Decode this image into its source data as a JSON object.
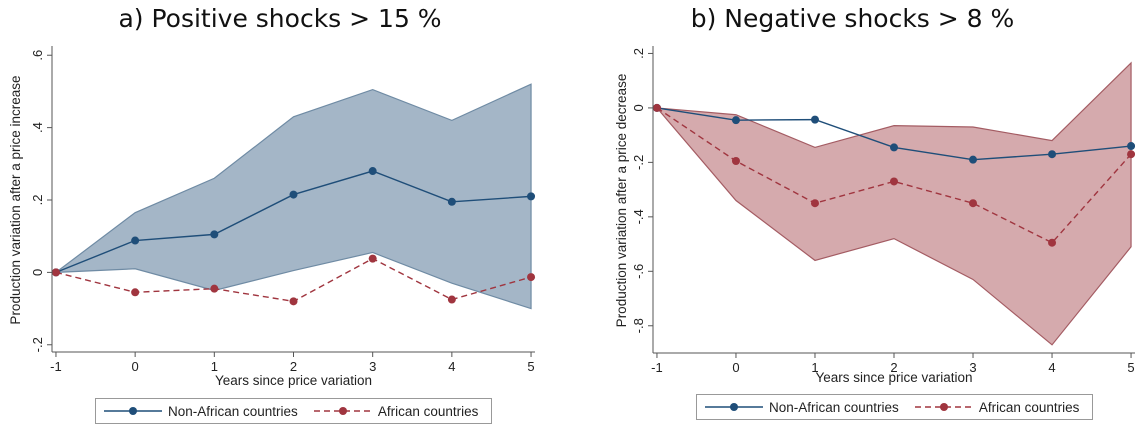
{
  "chart_data": [
    {
      "type": "line",
      "title": "a) Positive shocks > 15 %",
      "xlabel": "Years since price variation",
      "ylabel": "Production variation after a price increase",
      "x": [
        -1,
        0,
        1,
        2,
        3,
        4,
        5
      ],
      "x_tick_labels": [
        "-1",
        "0",
        "1",
        "2",
        "3",
        "4",
        "5"
      ],
      "y_ticks": [
        -0.2,
        0,
        0.2,
        0.4,
        0.6
      ],
      "y_tick_labels": [
        "-.2",
        "0",
        ".2",
        ".4",
        ".6"
      ],
      "ylim": [
        -0.22,
        0.62
      ],
      "xlim": [
        -1.05,
        5.05
      ],
      "band": {
        "upper": [
          0,
          0.165,
          0.26,
          0.43,
          0.505,
          0.42,
          0.52
        ],
        "lower": [
          0,
          0.01,
          -0.05,
          0.005,
          0.055,
          -0.03,
          -0.1
        ],
        "fill": "#9fb2c4",
        "stroke": "#6f8ba4"
      },
      "series": [
        {
          "name": "Non-African countries",
          "values": [
            0,
            0.088,
            0.105,
            0.215,
            0.28,
            0.195,
            0.21
          ],
          "color": "#1f4e79",
          "dash": "solid"
        },
        {
          "name": "African countries",
          "values": [
            0,
            -0.055,
            -0.045,
            -0.08,
            0.038,
            -0.075,
            -0.013
          ],
          "color": "#a0353f",
          "dash": "dashed"
        }
      ],
      "legend_position": "bottom",
      "grid": false
    },
    {
      "type": "line",
      "title": "b) Negative shocks > 8 %",
      "xlabel": "Years since price variation",
      "ylabel": "Production variation after a price decrease",
      "x": [
        -1,
        0,
        1,
        2,
        3,
        4,
        5
      ],
      "x_tick_labels": [
        "-1",
        "0",
        "1",
        "2",
        "3",
        "4",
        "5"
      ],
      "y_ticks": [
        -0.8,
        -0.6,
        -0.4,
        -0.2,
        0,
        0.2
      ],
      "y_tick_labels": [
        "-.8",
        "-.6",
        "-.4",
        "-.2",
        "0",
        ".2"
      ],
      "ylim": [
        -0.9,
        0.22
      ],
      "xlim": [
        -1.05,
        5.05
      ],
      "band": {
        "upper": [
          0,
          -0.025,
          -0.145,
          -0.065,
          -0.07,
          -0.12,
          0.165
        ],
        "lower": [
          0,
          -0.34,
          -0.56,
          -0.48,
          -0.63,
          -0.87,
          -0.51
        ],
        "fill": "#d3a5a9",
        "stroke": "#a45c63"
      },
      "series": [
        {
          "name": "Non-African countries",
          "values": [
            0,
            -0.045,
            -0.043,
            -0.145,
            -0.19,
            -0.17,
            -0.14
          ],
          "color": "#1f4e79",
          "dash": "solid"
        },
        {
          "name": "African countries",
          "values": [
            0,
            -0.195,
            -0.35,
            -0.27,
            -0.35,
            -0.495,
            -0.17
          ],
          "color": "#a0353f",
          "dash": "dashed"
        }
      ],
      "legend_position": "bottom",
      "grid": false
    }
  ]
}
